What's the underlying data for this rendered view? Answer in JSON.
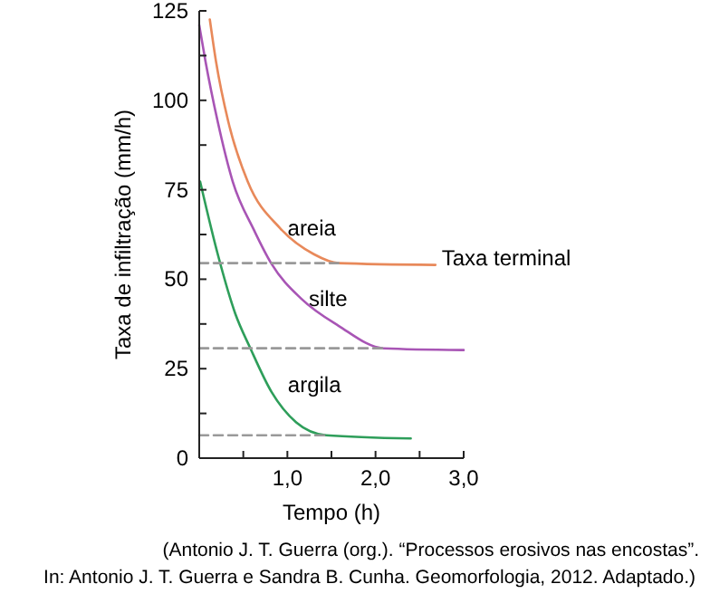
{
  "chart_data": {
    "type": "line",
    "xlabel": "Tempo (h)",
    "ylabel": "Taxa de infiltração (mm/h)",
    "xlim": [
      0,
      3
    ],
    "ylim": [
      0,
      125
    ],
    "xticks": [
      {
        "value": 0.5,
        "label": null
      },
      {
        "value": 1,
        "label": "1,0"
      },
      {
        "value": 1.5,
        "label": null
      },
      {
        "value": 2,
        "label": "2,0"
      },
      {
        "value": 2.5,
        "label": null
      },
      {
        "value": 3,
        "label": "3,0"
      }
    ],
    "yticks": [
      0,
      {
        "value": 12.5,
        "label": null
      },
      25,
      {
        "value": 37.5,
        "label": null
      },
      50,
      {
        "value": 62.5,
        "label": null
      },
      75,
      {
        "value": 87.5,
        "label": null
      },
      100,
      {
        "value": 112.5,
        "label": null
      },
      125
    ],
    "series": [
      {
        "name": "areia",
        "color": "#e8895a",
        "x": [
          0.12,
          0.19,
          0.33,
          0.55,
          0.92,
          1.3,
          1.58,
          2.68
        ],
        "values": [
          122.6,
          110.9,
          94,
          77.3,
          64.2,
          57,
          54.5,
          54
        ]
      },
      {
        "name": "silte",
        "color": "#a855b5",
        "x": [
          0,
          0.07,
          0.21,
          0.38,
          0.62,
          0.82,
          1.16,
          1.58,
          2.09,
          3.0
        ],
        "values": [
          121,
          111,
          94,
          77.3,
          63.8,
          54.3,
          44.5,
          37,
          30.7,
          30.2
        ]
      },
      {
        "name": "argila",
        "color": "#2e9e5a",
        "x": [
          0.01,
          0.21,
          0.41,
          0.58,
          0.82,
          1.1,
          1.44,
          2.4
        ],
        "values": [
          77.3,
          57,
          40.3,
          30.7,
          18.5,
          10,
          6.4,
          5.5
        ]
      },
      {
        "color": "#999999",
        "line_style": "dashed",
        "x": [
          0,
          1.58
        ],
        "values": [
          54.5,
          54.5
        ]
      },
      {
        "color": "#999999",
        "line_style": "dashed",
        "x": [
          0,
          2.09
        ],
        "values": [
          30.7,
          30.7
        ]
      },
      {
        "color": "#999999",
        "line_style": "dashed",
        "x": [
          0,
          1.44
        ],
        "values": [
          6.4,
          6.4
        ]
      }
    ],
    "annotations": [
      {
        "text": "Taxa terminal",
        "x": 2.75,
        "y": 56
      },
      "(Antonio J. T. Guerra (org.). “Processos erosivos nas encostas”.",
      "In: Antonio J. T. Guerra e Sandra B. Cunha. Geomorfologia, 2012. Adaptado.)"
    ]
  }
}
